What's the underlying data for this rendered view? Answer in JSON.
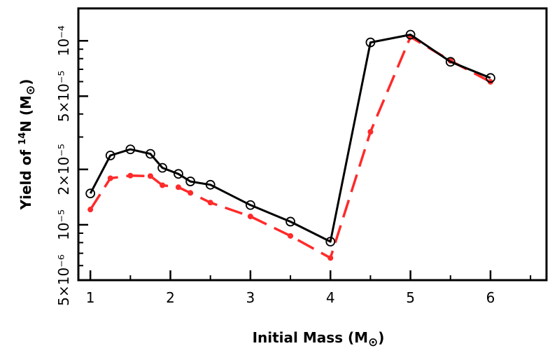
{
  "chart_data": {
    "type": "line",
    "title": "",
    "xlabel": "Initial Mass (M⊙)",
    "ylabel": "Yield of ¹⁴N (M⊙)",
    "xlabel_parts": {
      "text": "Initial Mass (M",
      "symbol": "⊙",
      "close": ")"
    },
    "ylabel_parts": {
      "pre": "Yield of ",
      "sup": "14",
      "mid": "N (M",
      "symbol": "⊙",
      "close": ")"
    },
    "xscale": "linear",
    "yscale": "log",
    "xlim": [
      0.85,
      6.7
    ],
    "ylim": [
      5e-06,
      0.00015
    ],
    "x_ticks": [
      1,
      2,
      3,
      4,
      5,
      6
    ],
    "x_tick_labels": [
      "1",
      "2",
      "3",
      "4",
      "5",
      "6"
    ],
    "y_ticks": [
      5e-06,
      1e-05,
      2e-05,
      5e-05,
      0.0001
    ],
    "y_tick_labels": [
      "5×10⁻⁶",
      "10⁻⁵",
      "2×10⁻⁵",
      "5×10⁻⁵",
      "10⁻⁴"
    ],
    "grid": false,
    "legend": "none",
    "series": [
      {
        "style": "solid",
        "marker": "open-circle",
        "color": "#000000",
        "x": [
          1.0,
          1.25,
          1.5,
          1.75,
          1.9,
          2.1,
          2.25,
          2.5,
          3.0,
          3.5,
          4.0,
          4.5,
          5.0,
          5.5,
          6.0
        ],
        "y": [
          1.48e-05,
          2.38e-05,
          2.57e-05,
          2.43e-05,
          2.04e-05,
          1.89e-05,
          1.72e-05,
          1.65e-05,
          1.28e-05,
          1.04e-05,
          8.1e-06,
          9.8e-05,
          0.000108,
          7.69e-05,
          6.28e-05
        ]
      },
      {
        "style": "dashed",
        "marker": "filled-dot",
        "color": "#ff2a2a",
        "x": [
          1.0,
          1.25,
          1.5,
          1.75,
          1.9,
          2.1,
          2.25,
          2.5,
          3.0,
          3.5,
          4.0,
          4.5,
          5.0,
          5.5,
          6.0
        ],
        "y": [
          1.21e-05,
          1.79e-05,
          1.85e-05,
          1.84e-05,
          1.64e-05,
          1.6e-05,
          1.49e-05,
          1.32e-05,
          1.11e-05,
          8.7e-06,
          6.6e-06,
          3.2e-05,
          0.000105,
          7.79e-05,
          5.98e-05
        ]
      }
    ]
  }
}
